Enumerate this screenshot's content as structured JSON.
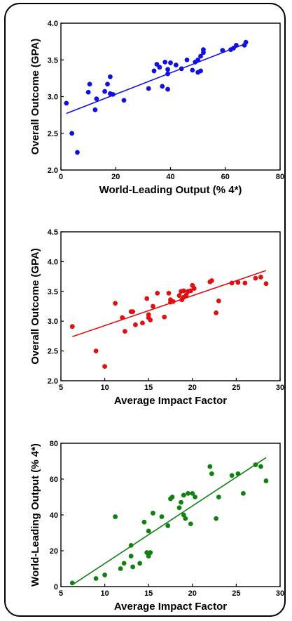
{
  "chart_data": [
    {
      "type": "scatter",
      "xlabel": "World-Leading Output (% 4*)",
      "ylabel": "Overall Outcome (GPA)",
      "xlim": [
        0,
        80
      ],
      "ylim": [
        2.0,
        4.0
      ],
      "xticks": [
        "0",
        "20",
        "40",
        "60",
        "80"
      ],
      "yticks": [
        "2.0",
        "2.5",
        "3.0",
        "3.5",
        "4.0"
      ],
      "grid": false,
      "color": "#1010e0",
      "trendline": {
        "x": [
          2,
          68
        ],
        "y": [
          2.77,
          3.73
        ]
      },
      "points": {
        "x": [
          2,
          4,
          6,
          10,
          10.5,
          12.5,
          13,
          16,
          17,
          18,
          18,
          19,
          23,
          32,
          34,
          35,
          36,
          37,
          38,
          39,
          39,
          39,
          40,
          42,
          44,
          46,
          48,
          49,
          50,
          50,
          51,
          51,
          52,
          52,
          59,
          62,
          63,
          64,
          67,
          67.5
        ],
        "y": [
          2.91,
          2.5,
          2.24,
          3.06,
          3.17,
          2.82,
          2.97,
          3.07,
          3.17,
          3.27,
          3.04,
          3.03,
          2.95,
          3.11,
          3.35,
          3.44,
          3.4,
          3.14,
          3.47,
          3.31,
          3.37,
          3.1,
          3.46,
          3.43,
          3.38,
          3.5,
          3.36,
          3.47,
          3.33,
          3.5,
          3.35,
          3.55,
          3.6,
          3.64,
          3.63,
          3.64,
          3.66,
          3.7,
          3.7,
          3.74
        ]
      }
    },
    {
      "type": "scatter",
      "xlabel": "Average Impact Factor",
      "ylabel": "Overall Outcome (GPA)",
      "xlim": [
        5,
        30
      ],
      "ylim": [
        2.0,
        4.5
      ],
      "xticks": [
        "5",
        "10",
        "15",
        "20",
        "25",
        "30"
      ],
      "yticks": [
        "2.0",
        "2.5",
        "3.0",
        "3.5",
        "4.0",
        "4.5"
      ],
      "grid": false,
      "color": "#e01010",
      "trendline": {
        "x": [
          6.3,
          28.4
        ],
        "y": [
          2.74,
          3.85
        ]
      },
      "points": {
        "x": [
          6.3,
          9,
          10,
          11.2,
          12,
          12.3,
          13,
          13.2,
          13.5,
          14.3,
          14.8,
          15,
          15,
          15.2,
          15.5,
          16,
          16.8,
          17.3,
          17.5,
          17.5,
          17.8,
          18.5,
          18.7,
          18.8,
          19,
          19,
          19.3,
          19.5,
          19.8,
          20,
          20.2,
          22,
          22.2,
          22.7,
          23,
          24.5,
          25.2,
          26,
          27.2,
          27.8,
          28.4
        ],
        "y": [
          2.91,
          2.5,
          2.24,
          3.3,
          3.06,
          2.83,
          3.16,
          3.16,
          2.94,
          2.97,
          3.38,
          3.06,
          3.11,
          3.02,
          3.25,
          3.47,
          3.07,
          3.47,
          3.36,
          3.32,
          3.33,
          3.43,
          3.5,
          3.36,
          3.4,
          3.51,
          3.44,
          3.5,
          3.51,
          3.6,
          3.55,
          3.66,
          3.68,
          3.14,
          3.34,
          3.64,
          3.65,
          3.64,
          3.72,
          3.74,
          3.63
        ]
      }
    },
    {
      "type": "scatter",
      "xlabel": "Average Impact Factor",
      "ylabel": "World-Leading Output (% 4*)",
      "xlim": [
        5,
        30
      ],
      "ylim": [
        0,
        80
      ],
      "xticks": [
        "5",
        "10",
        "15",
        "20",
        "25",
        "30"
      ],
      "yticks": [
        "0",
        "20",
        "40",
        "60",
        "80"
      ],
      "grid": false,
      "color": "#108010",
      "trendline": {
        "x": [
          6.3,
          28.4
        ],
        "y": [
          1,
          72
        ]
      },
      "points": {
        "x": [
          6.3,
          9,
          10,
          11.2,
          11.8,
          12.2,
          13,
          13,
          13.2,
          14,
          14.5,
          14.8,
          15,
          15,
          15.2,
          15.5,
          16.5,
          17.2,
          17.5,
          17.7,
          18.5,
          18.7,
          19,
          19,
          19.2,
          19.5,
          19.8,
          20,
          20.3,
          22,
          22.2,
          22.7,
          23,
          24.5,
          25.2,
          25.8,
          27.2,
          27.8,
          28.4
        ],
        "y": [
          2,
          4.5,
          6.5,
          39,
          10,
          13,
          23,
          17,
          11,
          13,
          36,
          19,
          31,
          17,
          19,
          41,
          39,
          34,
          49,
          50,
          44,
          47,
          40,
          51,
          38,
          52,
          35,
          52,
          50,
          67,
          63,
          38,
          50,
          62,
          63,
          52,
          68,
          67,
          59
        ]
      }
    }
  ]
}
